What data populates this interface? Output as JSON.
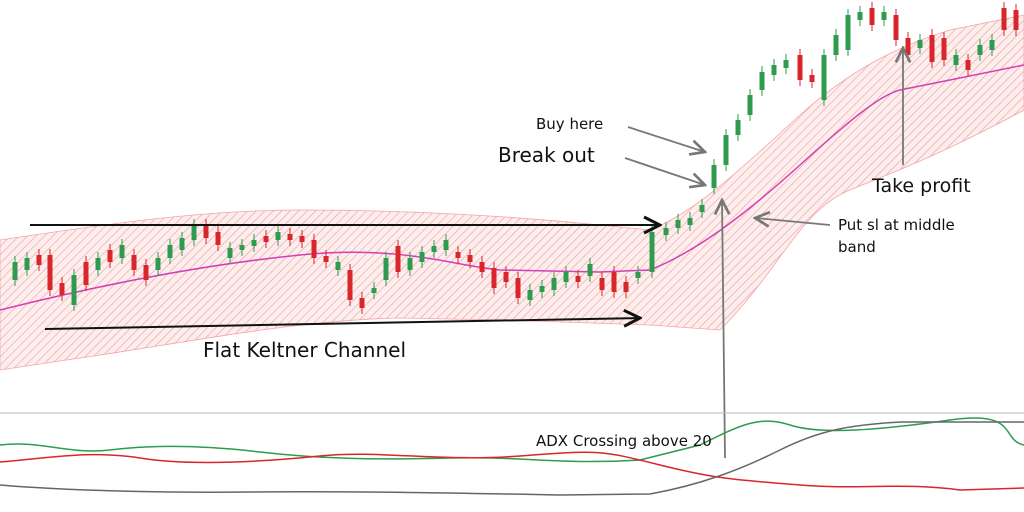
{
  "annotations": {
    "buy_here": "Buy here",
    "break_out": "Break out",
    "take_profit": "Take profit",
    "stop_loss": [
      "Put sl at middle",
      "band"
    ],
    "flat_channel": "Flat Keltner Channel",
    "adx": "ADX Crossing above 20"
  }
}
